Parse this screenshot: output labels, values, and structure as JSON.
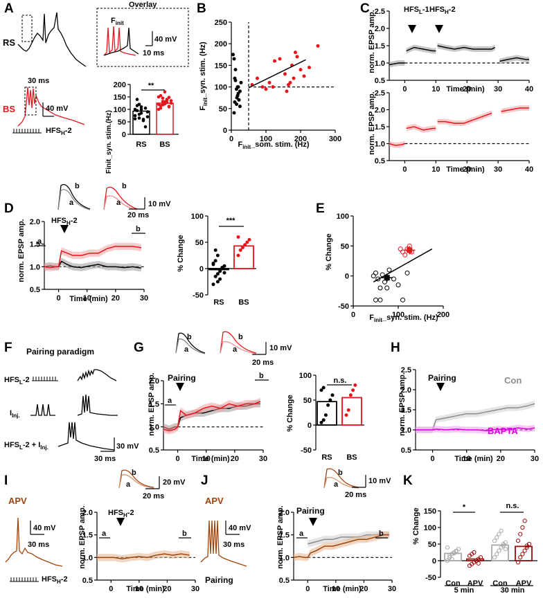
{
  "title": "Synaptic plasticity figure (panels A–K)",
  "colors": {
    "rs": "#000000",
    "bs": "#e8141b",
    "apv": "#a0430a",
    "bapta": "#e000e0",
    "con": "#8c8c8c",
    "apv_dark": "#9b0a0a"
  },
  "panels": {
    "A": {
      "letter": "A",
      "rs": "RS",
      "bs": "BS",
      "overlay": "Overlay",
      "finit": "F",
      "finit_sub": "init",
      "scale_v": "40 mV",
      "scale_t_overlay": "10 ms",
      "scale_t": "30 ms",
      "protocol": "HFS",
      "protocol_sub": "H",
      "protocol_suffix": "-2",
      "bar_ylabel": "Finit_syn. stim.(Hz)",
      "sig": "**"
    },
    "B": {
      "letter": "B",
      "xlabel_a": "F",
      "xlabel_sub": "init",
      "xlabel_b": "_som. stim. (Hz)",
      "ylabel_a": "F",
      "ylabel_sub": "init",
      "ylabel_b": "_syn. stim. (Hz)"
    },
    "C": {
      "letter": "C",
      "ylabel": "norm. EPSP amp.",
      "xlabel": "Time (min)",
      "arrow1": "HFS",
      "arrow1_sub": "L",
      "arrow1_suffix": "-1",
      "arrow2": "HFS",
      "arrow2_sub": "H",
      "arrow2_suffix": "-2"
    },
    "D": {
      "letter": "D",
      "ylabel": "norm. EPSP amp.",
      "xlabel": "Time (min)",
      "arrow": "HFS",
      "arrow_sub": "H",
      "arrow_suffix": "-2",
      "a": "a",
      "b": "b",
      "scale_v": "10 mV",
      "scale_t": "20 ms",
      "bar_ylabel": "% Change",
      "sig": "***"
    },
    "E": {
      "letter": "E",
      "ylabel": "% Change",
      "xlabel_a": "F",
      "xlabel_sub": "init",
      "xlabel_b": "_syn. stim. (Hz)"
    },
    "F": {
      "letter": "F",
      "title": "Pairing paradigm",
      "row1": "HFS",
      "row1_sub": "L",
      "row1_suffix": "-2",
      "row2": "I",
      "row2_sub": "Inj.",
      "row3": "HFS",
      "row3_sub": "L",
      "row3_suffix": "-2 + I",
      "row3_sub2": "Inj.",
      "scale_v": "30 mV",
      "scale_t": "30 ms"
    },
    "G": {
      "letter": "G",
      "ylabel": "norm. EPSP amp.",
      "xlabel": "Time (min)",
      "arrow": "Pairing",
      "a": "a",
      "b": "b",
      "scale_v": "10 mV",
      "scale_t": "20 ms",
      "bar_ylabel": "% Change",
      "sig": "n.s."
    },
    "H": {
      "letter": "H",
      "ylabel": "norm. EPSP amp.",
      "xlabel": "Time (min)",
      "arrow": "Pairing",
      "con": "Con",
      "bapta": "BAPTA"
    },
    "I": {
      "letter": "I",
      "drug": "APV",
      "ylabel": "norm. EPSP amp.",
      "xlabel": "Time (min)",
      "arrow": "HFS",
      "arrow_sub": "H",
      "arrow_suffix": "-2",
      "a": "a",
      "b": "b",
      "scale_v": "40 mV",
      "scale_t": "30 ms",
      "scale_v2": "20 mV",
      "scale_t2": "20 ms",
      "protocol": "HFS",
      "protocol_sub": "H",
      "protocol_suffix": "-2"
    },
    "J": {
      "letter": "J",
      "drug": "APV",
      "ylabel": "norm. EPSP amp.",
      "xlabel": "Time (min)",
      "arrow": "Pairing",
      "a": "a",
      "b": "b",
      "scale_v": "40 mV",
      "scale_t": "30 ms",
      "scale_v2": "10 mV",
      "scale_t2": "20 ms",
      "protocol": "Pairing"
    },
    "K": {
      "letter": "K",
      "ylabel": "% Change",
      "sig1": "*",
      "sig2": "n.s.",
      "time1": "5 min",
      "time2": "30 min"
    }
  },
  "chart_data": [
    {
      "id": "A-bar",
      "type": "bar",
      "categories": [
        "RS",
        "BS"
      ],
      "values": [
        93,
        125
      ],
      "ylim": [
        0,
        200
      ],
      "yticks": [
        0,
        50,
        100,
        150,
        200
      ],
      "ylabel": "Finit_syn. stim.(Hz)",
      "points": [
        [
          62,
          95,
          80,
          110,
          60,
          30,
          70,
          100,
          140,
          120,
          85,
          55,
          105,
          90,
          75,
          115,
          65,
          100
        ],
        [
          100,
          155,
          118,
          130,
          140,
          112,
          135,
          120,
          105,
          145,
          170,
          128,
          110,
          125,
          150,
          115,
          132,
          122,
          138,
          148
        ]
      ]
    },
    {
      "id": "B",
      "type": "scatter",
      "xlim": [
        0,
        300
      ],
      "ylim": [
        0,
        250
      ],
      "xticks": [
        0,
        100,
        200,
        300
      ],
      "yticks": [
        0,
        50,
        100,
        150,
        200,
        250
      ],
      "xlabel": "Finit_som. stim. (Hz)",
      "ylabel": "Finit_syn. stim. (Hz)",
      "series": [
        {
          "name": "RS",
          "x": [
            5,
            8,
            10,
            12,
            15,
            18,
            20,
            22,
            25,
            10,
            15,
            18,
            20,
            12,
            25,
            28,
            8,
            16
          ],
          "y": [
            175,
            165,
            120,
            115,
            95,
            100,
            85,
            70,
            55,
            65,
            60,
            80,
            100,
            140,
            90,
            110,
            40,
            75
          ]
        },
        {
          "name": "BS",
          "x": [
            60,
            75,
            90,
            100,
            110,
            125,
            140,
            155,
            160,
            165,
            170,
            175,
            180,
            185,
            190,
            200,
            210,
            225,
            250,
            120
          ],
          "y": [
            105,
            120,
            100,
            95,
            110,
            160,
            165,
            130,
            90,
            105,
            110,
            150,
            120,
            180,
            170,
            140,
            125,
            145,
            195,
            100
          ]
        }
      ],
      "fit": {
        "x": [
          50,
          215
        ],
        "y": [
          98,
          163
        ]
      },
      "vline": 50,
      "hline": 100
    },
    {
      "id": "C-top",
      "type": "line",
      "xlim": [
        -5,
        40
      ],
      "ylim": [
        0.5,
        2.5
      ],
      "xticks": [
        0,
        10,
        20,
        30,
        40
      ],
      "yticks": [
        0.5,
        1.0,
        1.5,
        2.0,
        2.5
      ],
      "series": [
        {
          "name": "RS",
          "x": [
            -5,
            -2,
            0,
            0.5,
            3,
            6,
            9,
            10,
            10.5,
            13,
            16,
            19,
            22,
            25,
            28,
            29,
            30.5,
            33,
            36,
            39,
            40
          ],
          "y": [
            0.95,
            1.0,
            1.0,
            1.35,
            1.45,
            1.4,
            1.35,
            1.35,
            1.5,
            1.45,
            1.4,
            1.45,
            1.4,
            1.4,
            1.4,
            1.45,
            1.05,
            1.1,
            1.15,
            1.1,
            1.1
          ]
        }
      ]
    },
    {
      "id": "C-bottom",
      "type": "line",
      "xlim": [
        -5,
        40
      ],
      "ylim": [
        0.5,
        2.5
      ],
      "xticks": [
        0,
        10,
        20,
        30,
        40
      ],
      "yticks": [
        0.5,
        1.0,
        1.5,
        2.0,
        2.5
      ],
      "series": [
        {
          "name": "BS",
          "x": [
            -5,
            -3,
            -1,
            0,
            0.5,
            3,
            6,
            9,
            10,
            10.5,
            13,
            16,
            19,
            22,
            25,
            28,
            31,
            34,
            37,
            40
          ],
          "y": [
            1.0,
            0.95,
            0.97,
            1.0,
            1.45,
            1.5,
            1.4,
            1.45,
            1.45,
            1.65,
            1.65,
            1.6,
            1.6,
            1.7,
            1.8,
            1.9,
            1.95,
            2.0,
            2.05,
            2.05
          ]
        }
      ]
    },
    {
      "id": "D-line",
      "type": "line",
      "xlim": [
        -5,
        30
      ],
      "ylim": [
        0.5,
        2.0
      ],
      "xticks": [
        0,
        10,
        20,
        30
      ],
      "yticks": [
        0.5,
        1.0,
        1.5,
        2.0
      ],
      "series": [
        {
          "name": "RS",
          "x": [
            -5,
            -3,
            -1,
            0,
            1,
            3,
            5,
            8,
            11,
            14,
            17,
            20,
            23,
            26,
            29
          ],
          "y": [
            1.0,
            1.02,
            1.0,
            1.0,
            1.12,
            1.05,
            1.0,
            0.98,
            1.02,
            1.05,
            1.0,
            1.0,
            0.98,
            1.0,
            0.97
          ]
        },
        {
          "name": "BS",
          "x": [
            -5,
            -3,
            -1,
            0,
            1,
            3,
            5,
            8,
            11,
            14,
            17,
            20,
            23,
            26,
            29
          ],
          "y": [
            1.0,
            0.98,
            1.0,
            1.0,
            1.35,
            1.3,
            1.25,
            1.25,
            1.3,
            1.3,
            1.4,
            1.45,
            1.45,
            1.45,
            1.42
          ]
        }
      ]
    },
    {
      "id": "D-bar",
      "type": "bar",
      "categories": [
        "RS",
        "BS"
      ],
      "values": [
        -2,
        43
      ],
      "ylim": [
        -50,
        100
      ],
      "yticks": [
        -50,
        0,
        50,
        100
      ],
      "points": [
        [
          -30,
          -15,
          -10,
          -5,
          0,
          5,
          10,
          15,
          25,
          -20,
          2,
          -8,
          8,
          35,
          -25
        ],
        [
          25,
          35,
          40,
          45,
          50,
          55,
          60
        ]
      ]
    },
    {
      "id": "E",
      "type": "scatter",
      "xlim": [
        0,
        200
      ],
      "ylim": [
        -50,
        100
      ],
      "xticks": [
        0,
        100,
        200
      ],
      "yticks": [
        -50,
        0,
        50,
        100
      ],
      "series": [
        {
          "name": "RS",
          "x": [
            45,
            50,
            55,
            60,
            65,
            70,
            75,
            80,
            90,
            100,
            110,
            120,
            50,
            60
          ],
          "y": [
            0,
            5,
            -5,
            -40,
            2,
            -10,
            -20,
            10,
            -5,
            -15,
            -40,
            5,
            -40,
            -20
          ]
        },
        {
          "name": "BS",
          "x": [
            105,
            110,
            115,
            120,
            125,
            130
          ],
          "y": [
            45,
            40,
            35,
            45,
            50,
            40
          ]
        }
      ],
      "means": [
        {
          "name": "RS",
          "x": 75,
          "y": -3
        },
        {
          "name": "BS",
          "x": 125,
          "y": 43
        }
      ],
      "fit": {
        "x": [
          45,
          175
        ],
        "y": [
          -10,
          45
        ]
      }
    },
    {
      "id": "G-line",
      "type": "line",
      "xlim": [
        -5,
        30
      ],
      "ylim": [
        0.5,
        2.0
      ],
      "xticks": [
        0,
        10,
        20,
        30
      ],
      "yticks": [
        0.5,
        1.0,
        1.5,
        2.0
      ],
      "series": [
        {
          "name": "RS",
          "x": [
            -5,
            -3,
            -1,
            0,
            1,
            3,
            6,
            9,
            12,
            15,
            18,
            21,
            24,
            27,
            29
          ],
          "y": [
            1.0,
            0.95,
            1.0,
            1.0,
            1.2,
            1.25,
            1.3,
            1.3,
            1.35,
            1.4,
            1.4,
            1.45,
            1.45,
            1.5,
            1.5
          ]
        },
        {
          "name": "BS",
          "x": [
            -5,
            -3,
            -1,
            0,
            1,
            3,
            6,
            9,
            12,
            15,
            18,
            21,
            24,
            27,
            29
          ],
          "y": [
            0.95,
            0.92,
            0.95,
            1.0,
            1.35,
            1.25,
            1.3,
            1.4,
            1.45,
            1.4,
            1.5,
            1.45,
            1.5,
            1.5,
            1.55
          ]
        }
      ]
    },
    {
      "id": "G-bar",
      "type": "bar",
      "categories": [
        "RS",
        "BS"
      ],
      "values": [
        47,
        55
      ],
      "ylim": [
        -50,
        100
      ],
      "yticks": [
        -50,
        0,
        50,
        100
      ],
      "points": [
        [
          5,
          10,
          20,
          40,
          50,
          60,
          70,
          75
        ],
        [
          20,
          30,
          60,
          70,
          80
        ]
      ]
    },
    {
      "id": "H",
      "type": "line",
      "xlim": [
        -5,
        30
      ],
      "ylim": [
        0.5,
        2.5
      ],
      "xticks": [
        0,
        10,
        20,
        30
      ],
      "yticks": [
        0.5,
        1.0,
        1.5,
        2.0,
        2.5
      ],
      "series": [
        {
          "name": "Con",
          "x": [
            -5,
            -3,
            -1,
            0,
            1,
            4,
            7,
            10,
            13,
            16,
            19,
            22,
            25,
            28,
            30
          ],
          "y": [
            1.0,
            1.0,
            1.0,
            1.0,
            1.25,
            1.3,
            1.35,
            1.4,
            1.4,
            1.45,
            1.5,
            1.55,
            1.55,
            1.6,
            1.65
          ]
        },
        {
          "name": "BAPTA",
          "x": [
            -5,
            -3,
            -1,
            0,
            1,
            4,
            7,
            10,
            13,
            16,
            19,
            22,
            25,
            28,
            30
          ],
          "y": [
            1.0,
            1.0,
            1.0,
            1.0,
            1.02,
            1.0,
            1.02,
            1.0,
            1.0,
            0.98,
            1.02,
            1.0,
            1.05,
            1.02,
            1.05
          ]
        }
      ]
    },
    {
      "id": "I-line",
      "type": "line",
      "xlim": [
        -5,
        30
      ],
      "ylim": [
        0.5,
        2.0
      ],
      "xticks": [
        0,
        10,
        20,
        30
      ],
      "yticks": [
        0.5,
        1.0,
        1.5,
        2.0
      ],
      "series": [
        {
          "name": "APV",
          "x": [
            -5,
            -3,
            -1,
            0,
            1,
            4,
            7,
            10,
            13,
            16,
            19,
            22,
            25,
            28
          ],
          "y": [
            1.0,
            1.0,
            1.0,
            1.0,
            1.0,
            0.97,
            1.0,
            1.02,
            1.0,
            1.05,
            1.08,
            1.05,
            1.08,
            1.05
          ]
        }
      ]
    },
    {
      "id": "J-line",
      "type": "line",
      "xlim": [
        -5,
        30
      ],
      "ylim": [
        0.5,
        2.0
      ],
      "xticks": [
        0,
        10,
        20,
        30
      ],
      "yticks": [
        0.5,
        1.0,
        1.5,
        2.0
      ],
      "series": [
        {
          "name": "Con",
          "x": [
            0,
            3,
            6,
            9,
            12,
            15,
            18,
            21,
            24,
            27,
            29
          ],
          "y": [
            1.3,
            1.35,
            1.4,
            1.4,
            1.45,
            1.45,
            1.45,
            1.5,
            1.5,
            1.5,
            1.5
          ]
        },
        {
          "name": "APV",
          "x": [
            -5,
            -3,
            -1,
            0,
            1,
            3,
            6,
            9,
            12,
            15,
            18,
            21,
            24,
            27,
            29
          ],
          "y": [
            1.0,
            1.02,
            1.0,
            1.0,
            1.1,
            1.15,
            1.25,
            1.25,
            1.3,
            1.35,
            1.4,
            1.4,
            1.45,
            1.5,
            1.5
          ]
        }
      ]
    },
    {
      "id": "K",
      "type": "bar",
      "categories": [
        "Con",
        "APV",
        "Con",
        "APV"
      ],
      "groups": [
        "5 min",
        "5 min",
        "30 min",
        "30 min"
      ],
      "values": [
        22,
        5,
        47,
        43
      ],
      "ylim": [
        -50,
        150
      ],
      "yticks": [
        -50,
        0,
        50,
        100,
        150
      ],
      "points": [
        [
          0,
          10,
          20,
          25,
          30,
          35,
          40,
          15,
          5,
          22,
          28
        ],
        [
          -15,
          -10,
          -5,
          0,
          5,
          10,
          15,
          20,
          25,
          0,
          -8
        ],
        [
          10,
          20,
          30,
          40,
          50,
          55,
          60,
          70,
          80,
          90,
          45,
          35
        ],
        [
          -5,
          10,
          20,
          30,
          40,
          50,
          60,
          80,
          100,
          120,
          45
        ]
      ]
    }
  ]
}
